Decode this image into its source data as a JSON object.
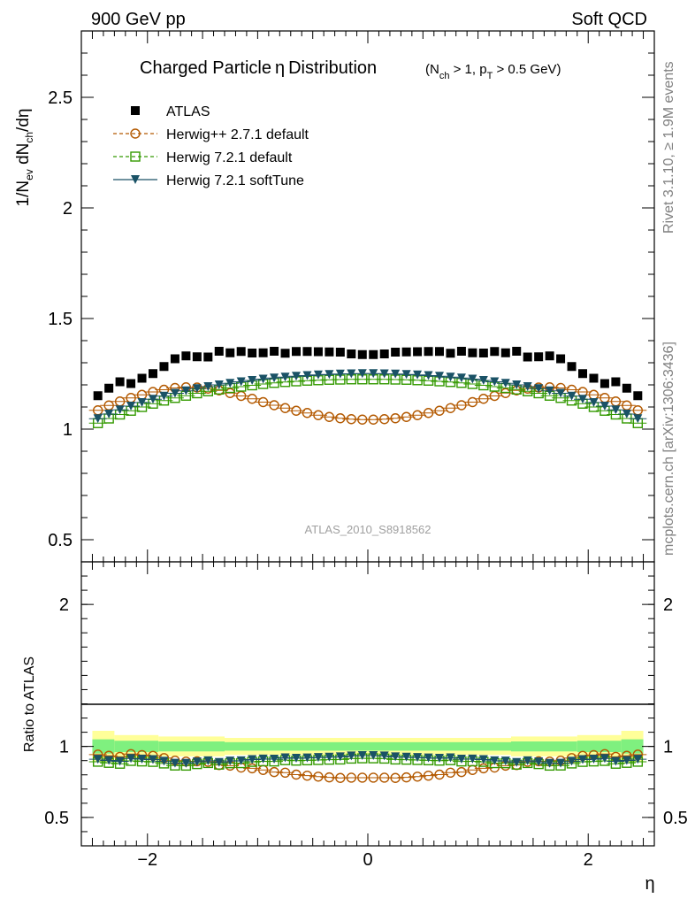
{
  "header": {
    "left": "900 GeV pp",
    "right": "Soft QCD"
  },
  "side_texts": {
    "rivet": "Rivet 3.1.10, ≥ 1.9M events",
    "mcplots": "mcplots.cern.ch [arXiv:1306:3436]"
  },
  "analysis_id": "ATLAS_2010_S8918562",
  "chart_data": [
    {
      "type": "scatter",
      "title": "Charged Particle η Distribution",
      "title_main": "Charged Particle",
      "title_eta": "η",
      "title_rest": "Distribution",
      "subtitle": "(N_ch > 1, p_T > 0.5 GeV)",
      "ylabel": "1/N_ev dN_ch/dη",
      "xlim": [
        -2.6,
        2.6
      ],
      "ylim": [
        0.4,
        2.8
      ],
      "yticks": [
        0.5,
        1,
        1.5,
        2,
        2.5
      ],
      "ytick_labels": [
        "0.5",
        "1",
        "1.5",
        "2",
        "2.5"
      ],
      "legend_position": "top-left",
      "x": [
        -2.45,
        -2.35,
        -2.25,
        -2.15,
        -2.05,
        -1.95,
        -1.85,
        -1.75,
        -1.65,
        -1.55,
        -1.45,
        -1.35,
        -1.25,
        -1.15,
        -1.05,
        -0.95,
        -0.85,
        -0.75,
        -0.65,
        -0.55,
        -0.45,
        -0.35,
        -0.25,
        -0.15,
        -0.05,
        0.05,
        0.15,
        0.25,
        0.35,
        0.45,
        0.55,
        0.65,
        0.75,
        0.85,
        0.95,
        1.05,
        1.15,
        1.25,
        1.35,
        1.45,
        1.55,
        1.65,
        1.75,
        1.85,
        1.95,
        2.05,
        2.15,
        2.25,
        2.35,
        2.45
      ],
      "series": [
        {
          "name": "ATLAS",
          "color": "#000000",
          "marker": "square-filled",
          "values": [
            1.151,
            1.185,
            1.214,
            1.206,
            1.23,
            1.251,
            1.283,
            1.318,
            1.331,
            1.327,
            1.326,
            1.352,
            1.345,
            1.351,
            1.344,
            1.345,
            1.352,
            1.343,
            1.351,
            1.351,
            1.35,
            1.349,
            1.348,
            1.34,
            1.337,
            1.337,
            1.34,
            1.348,
            1.349,
            1.35,
            1.351,
            1.351,
            1.343,
            1.352,
            1.345,
            1.344,
            1.351,
            1.345,
            1.352,
            1.326,
            1.327,
            1.331,
            1.318,
            1.283,
            1.251,
            1.23,
            1.206,
            1.214,
            1.185,
            1.151
          ]
        },
        {
          "name": "Herwig++ 2.7.1 default",
          "color": "#b35900",
          "marker": "circle-open",
          "values": [
            1.085,
            1.107,
            1.125,
            1.141,
            1.155,
            1.168,
            1.178,
            1.186,
            1.189,
            1.188,
            1.183,
            1.175,
            1.163,
            1.15,
            1.137,
            1.122,
            1.108,
            1.095,
            1.083,
            1.073,
            1.063,
            1.055,
            1.049,
            1.045,
            1.043,
            1.043,
            1.045,
            1.049,
            1.055,
            1.063,
            1.073,
            1.083,
            1.095,
            1.108,
            1.122,
            1.137,
            1.15,
            1.163,
            1.175,
            1.183,
            1.188,
            1.189,
            1.186,
            1.178,
            1.168,
            1.155,
            1.141,
            1.125,
            1.107,
            1.085
          ]
        },
        {
          "name": "Herwig 7.2.1 default",
          "color": "#339900",
          "marker": "square-open",
          "values": [
            1.027,
            1.048,
            1.066,
            1.083,
            1.1,
            1.115,
            1.129,
            1.141,
            1.151,
            1.162,
            1.171,
            1.179,
            1.186,
            1.192,
            1.198,
            1.204,
            1.209,
            1.213,
            1.216,
            1.219,
            1.221,
            1.223,
            1.224,
            1.225,
            1.225,
            1.225,
            1.225,
            1.224,
            1.223,
            1.221,
            1.219,
            1.216,
            1.213,
            1.209,
            1.204,
            1.198,
            1.192,
            1.186,
            1.179,
            1.171,
            1.162,
            1.151,
            1.141,
            1.129,
            1.115,
            1.1,
            1.083,
            1.066,
            1.048,
            1.027
          ]
        },
        {
          "name": "Herwig 7.2.1 softTune",
          "color": "#1a5266",
          "marker": "triangle-down",
          "values": [
            1.047,
            1.068,
            1.087,
            1.104,
            1.12,
            1.135,
            1.149,
            1.162,
            1.173,
            1.183,
            1.192,
            1.2,
            1.207,
            1.214,
            1.22,
            1.226,
            1.231,
            1.235,
            1.239,
            1.242,
            1.245,
            1.247,
            1.249,
            1.25,
            1.251,
            1.251,
            1.25,
            1.249,
            1.247,
            1.245,
            1.242,
            1.239,
            1.235,
            1.231,
            1.226,
            1.22,
            1.214,
            1.207,
            1.2,
            1.192,
            1.183,
            1.173,
            1.162,
            1.149,
            1.135,
            1.12,
            1.104,
            1.087,
            1.068,
            1.047
          ]
        }
      ]
    },
    {
      "type": "scatter",
      "ylabel": "Ratio to ATLAS",
      "xlabel": "η",
      "xlim": [
        -2.6,
        2.6
      ],
      "ylim": [
        0.3,
        2.3
      ],
      "yticks": [
        0.5,
        1,
        2
      ],
      "ytick_labels": [
        "0.5",
        "1",
        "2"
      ],
      "xticks": [
        -2,
        0,
        2
      ],
      "xtick_labels": [
        "−2",
        "0",
        "2"
      ],
      "bands": {
        "edges": [
          -2.5,
          -2.3,
          -1.9,
          -1.3,
          1.3,
          1.9,
          2.3,
          2.5
        ],
        "stat_half": [
          0.05,
          0.04,
          0.035,
          0.03,
          0.035,
          0.04,
          0.05
        ],
        "total_half": [
          0.11,
          0.08,
          0.07,
          0.06,
          0.07,
          0.08,
          0.11
        ],
        "inner_color": "#7ff07f",
        "outer_color": "#ffff99"
      }
    }
  ]
}
